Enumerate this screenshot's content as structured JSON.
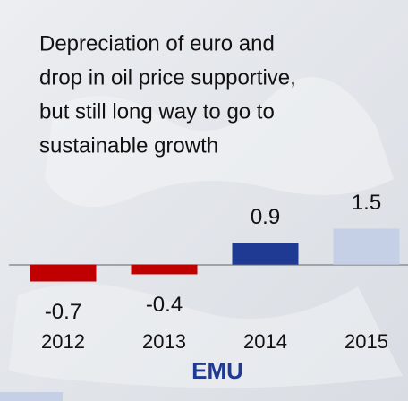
{
  "chart_data": {
    "type": "bar",
    "title": [
      "Depreciation of euro and",
      "drop in oil price supportive,",
      "but still long way to go to",
      "sustainable growth"
    ],
    "categories": [
      "2012",
      "2013",
      "2014",
      "2015"
    ],
    "values": [
      -0.7,
      -0.4,
      0.9,
      1.5
    ],
    "colors": [
      "#c00000",
      "#c00000",
      "#1f3a93",
      "#c5d0e6"
    ],
    "xlabel": "EMU",
    "ylim": [
      -1.5,
      2
    ]
  }
}
